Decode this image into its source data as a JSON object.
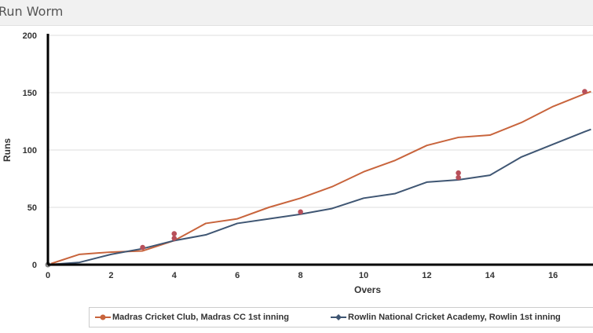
{
  "header": {
    "title": "Run Worm"
  },
  "colors": {
    "series1": "#c8643c",
    "series2": "#3f5673",
    "wicket": "#b8505a",
    "grid": "#dddddd",
    "axis": "#000000"
  },
  "chart_data": {
    "type": "line",
    "title": "",
    "xlabel": "Overs",
    "ylabel": "Runs",
    "xlim": [
      0,
      17.2
    ],
    "ylim": [
      0,
      200
    ],
    "xticks": [
      0,
      2,
      4,
      6,
      8,
      10,
      12,
      14,
      16
    ],
    "yticks": [
      0,
      50,
      100,
      150,
      200
    ],
    "grid": true,
    "legend_position": "bottom",
    "series": [
      {
        "name": "Madras Cricket Club, Madras CC 1st inning",
        "marker": "circle",
        "x": [
          0,
          1,
          2,
          3,
          4,
          5,
          6,
          7,
          8,
          9,
          10,
          11,
          12,
          13,
          14,
          15,
          16,
          17,
          17.2
        ],
        "y": [
          0,
          9,
          11,
          12,
          21,
          36,
          40,
          50,
          58,
          68,
          81,
          91,
          104,
          111,
          113,
          124,
          138,
          149,
          151
        ]
      },
      {
        "name": "Rowlin National Cricket Academy, Rowlin 1st inning",
        "marker": "diamond",
        "x": [
          0,
          1,
          2,
          3,
          4,
          5,
          6,
          7,
          8,
          9,
          10,
          11,
          12,
          13,
          14,
          15,
          16,
          17,
          17.2
        ],
        "y": [
          0,
          2,
          9,
          14,
          21,
          26,
          36,
          40,
          44,
          49,
          58,
          62,
          72,
          74,
          78,
          94,
          105,
          116,
          118
        ]
      }
    ],
    "wickets": [
      {
        "x": 3,
        "y": 15
      },
      {
        "x": 4,
        "y": 27
      },
      {
        "x": 4,
        "y": 23
      },
      {
        "x": 8,
        "y": 46
      },
      {
        "x": 13,
        "y": 80
      },
      {
        "x": 13,
        "y": 76
      },
      {
        "x": 17,
        "y": 151
      }
    ]
  }
}
